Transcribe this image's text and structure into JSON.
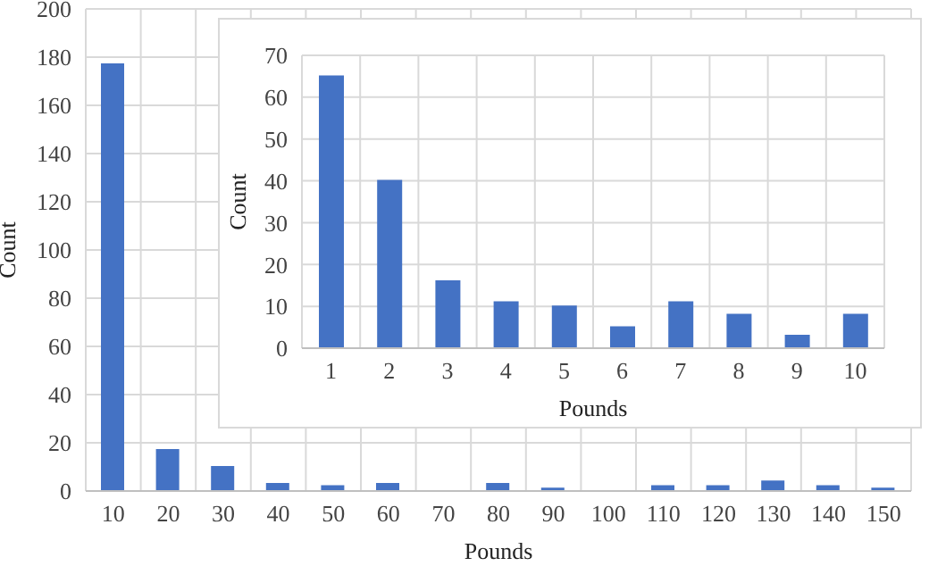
{
  "chart_data": [
    {
      "type": "bar",
      "xlabel": "Pounds",
      "ylabel": "Count",
      "categories": [
        "10",
        "20",
        "30",
        "40",
        "50",
        "60",
        "70",
        "80",
        "90",
        "100",
        "110",
        "120",
        "130",
        "140",
        "150"
      ],
      "values": [
        177,
        17,
        10,
        3,
        2,
        3,
        0,
        3,
        1,
        0,
        2,
        2,
        4,
        2,
        1
      ],
      "color": "#4472c4",
      "ylim": [
        0,
        200
      ],
      "yticks": [
        0,
        20,
        40,
        60,
        80,
        100,
        120,
        140,
        160,
        180,
        200
      ],
      "grid": true
    },
    {
      "type": "bar",
      "xlabel": "Pounds",
      "ylabel": "Count",
      "categories": [
        "1",
        "2",
        "3",
        "4",
        "5",
        "6",
        "7",
        "8",
        "9",
        "10"
      ],
      "values": [
        65,
        40,
        16,
        11,
        10,
        5,
        11,
        8,
        3,
        8
      ],
      "color": "#4472c4",
      "ylim": [
        0,
        70
      ],
      "yticks": [
        0,
        10,
        20,
        30,
        40,
        50,
        60,
        70
      ],
      "grid": true
    }
  ]
}
